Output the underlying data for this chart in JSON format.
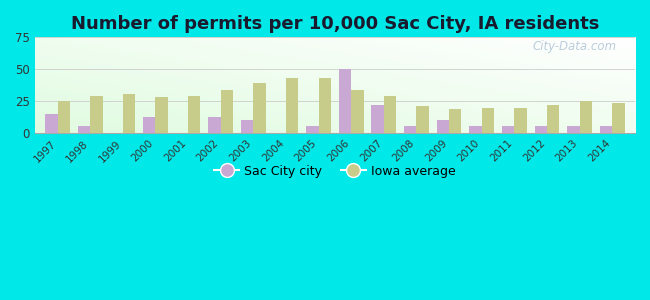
{
  "title": "Number of permits per 10,000 Sac City, IA residents",
  "years": [
    1997,
    1998,
    1999,
    2000,
    2001,
    2002,
    2003,
    2004,
    2005,
    2006,
    2007,
    2008,
    2009,
    2010,
    2011,
    2012,
    2013,
    2014
  ],
  "sac_city": [
    15,
    6,
    0,
    13,
    0,
    13,
    10,
    0,
    6,
    50,
    22,
    6,
    10,
    6,
    6,
    6,
    6,
    6
  ],
  "iowa_avg": [
    25,
    29,
    31,
    28,
    29,
    34,
    39,
    43,
    43,
    34,
    29,
    21,
    19,
    20,
    20,
    22,
    25,
    24
  ],
  "bar_width": 0.38,
  "sac_color": "#c9a8d4",
  "iowa_color": "#c8cc8a",
  "background_outer": "#00e8e8",
  "ylim": [
    0,
    75
  ],
  "yticks": [
    0,
    25,
    50,
    75
  ],
  "title_fontsize": 13,
  "title_color": "#1a1a2e",
  "legend_labels": [
    "Sac City city",
    "Iowa average"
  ],
  "watermark": "City-Data.com"
}
